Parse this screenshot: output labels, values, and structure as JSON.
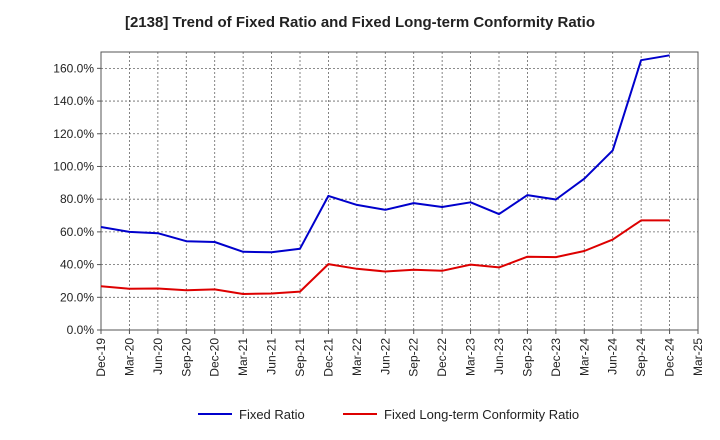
{
  "chart_data": {
    "type": "line",
    "title": "[2138]  Trend of Fixed Ratio and Fixed Long-term Conformity Ratio",
    "xlabel": "",
    "ylabel": "",
    "categories": [
      "Dec-19",
      "Mar-20",
      "Jun-20",
      "Sep-20",
      "Dec-20",
      "Mar-21",
      "Jun-21",
      "Sep-21",
      "Dec-21",
      "Mar-22",
      "Jun-22",
      "Sep-22",
      "Dec-22",
      "Mar-23",
      "Jun-23",
      "Sep-23",
      "Dec-23",
      "Mar-24",
      "Jun-24",
      "Sep-24",
      "Dec-24",
      "Mar-25"
    ],
    "ylim": [
      0,
      170
    ],
    "yticks": [
      0,
      20,
      40,
      60,
      80,
      100,
      120,
      140,
      160
    ],
    "ytick_labels": [
      "0.0%",
      "20.0%",
      "40.0%",
      "60.0%",
      "80.0%",
      "100.0%",
      "120.0%",
      "140.0%",
      "160.0%"
    ],
    "grid": true,
    "legend_position": "bottom",
    "series": [
      {
        "name": "Fixed Ratio",
        "color": "#0000cc",
        "values": [
          63.0,
          60.0,
          59.2,
          54.3,
          53.8,
          47.8,
          47.5,
          49.7,
          82.0,
          76.5,
          73.5,
          77.6,
          75.2,
          78.1,
          70.9,
          82.5,
          79.8,
          92.5,
          109.8,
          165.0,
          168.0,
          null
        ]
      },
      {
        "name": "Fixed Long-term Conformity Ratio",
        "color": "#dd0000",
        "values": [
          26.8,
          25.2,
          25.4,
          24.3,
          24.8,
          22.0,
          22.3,
          23.5,
          40.3,
          37.4,
          35.8,
          36.8,
          36.2,
          40.0,
          38.3,
          44.8,
          44.6,
          48.3,
          55.3,
          67.0,
          67.0,
          null
        ]
      }
    ]
  }
}
